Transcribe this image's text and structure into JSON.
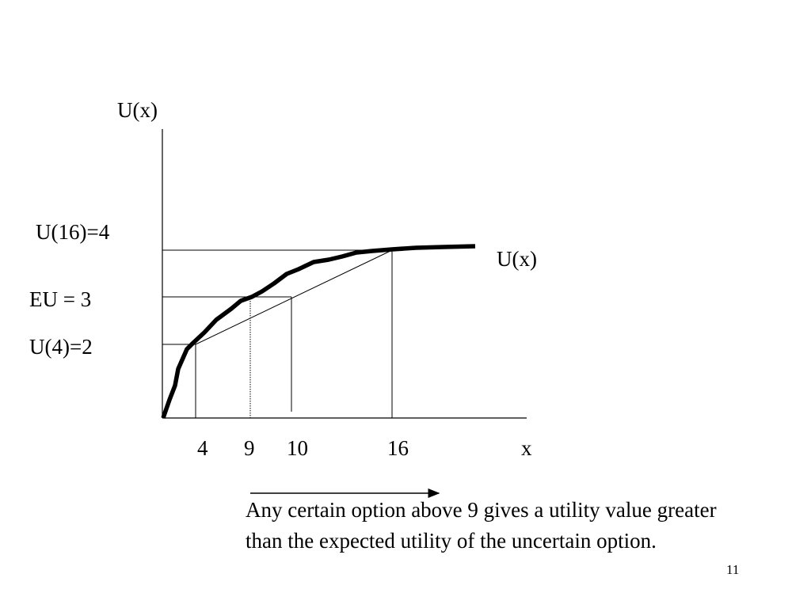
{
  "labels": {
    "y_axis": "U(x)",
    "curve": "U(x)",
    "x_axis": "x",
    "u16": "U(16)=4",
    "eu": "EU = 3",
    "u4": "U(4)=2"
  },
  "ticks": [
    "4",
    "9",
    "10",
    "16"
  ],
  "caption": "Any certain option above 9 gives a utility value greater than the expected utility of the uncertain option.",
  "page_number": "11",
  "colors": {
    "ink": "#000000",
    "background": "#ffffff"
  }
}
